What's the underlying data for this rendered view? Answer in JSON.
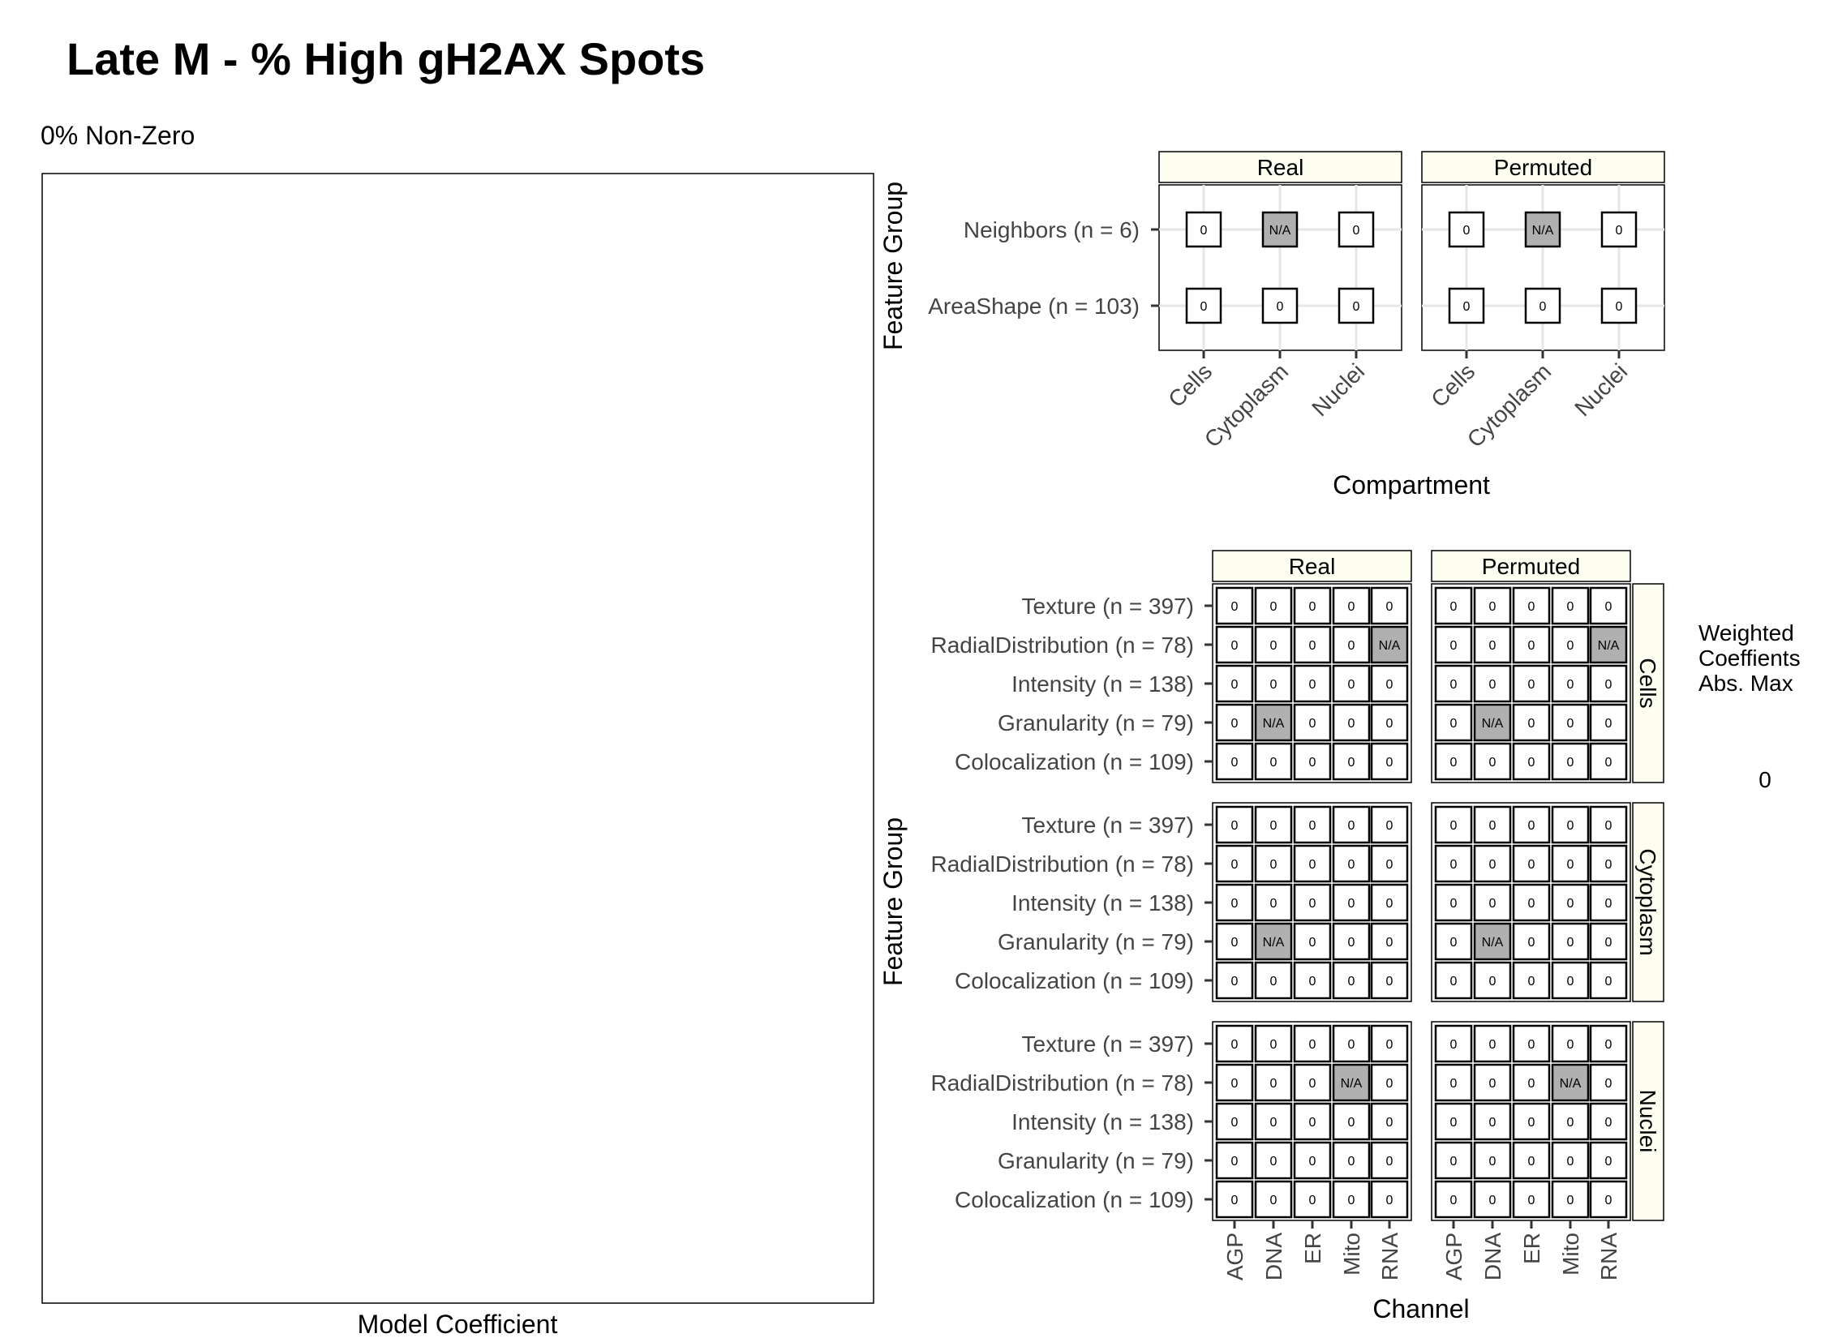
{
  "title": "Late M - % High gH2AX Spots",
  "chart_data": [
    {
      "type": "bar",
      "subtitle": "0% Non-Zero",
      "xlabel": "Model Coefficient",
      "ylabel": "",
      "categories": [],
      "values": []
    },
    {
      "type": "heatmap",
      "xlabel": "Compartment",
      "ylabel": "Feature Group",
      "facets": [
        "Real",
        "Permuted"
      ],
      "x_categories": [
        "Cells",
        "Cytoplasm",
        "Nuclei"
      ],
      "y_categories": [
        "Neighbors (n = 6)",
        "AreaShape (n = 103)"
      ],
      "cells": {
        "Real": [
          [
            "0",
            "N/A",
            "0"
          ],
          [
            "0",
            "0",
            "0"
          ]
        ],
        "Permuted": [
          [
            "0",
            "N/A",
            "0"
          ],
          [
            "0",
            "0",
            "0"
          ]
        ]
      }
    },
    {
      "type": "heatmap",
      "xlabel": "Channel",
      "ylabel": "Feature Group",
      "col_facets": [
        "Real",
        "Permuted"
      ],
      "row_facets": [
        "Cells",
        "Cytoplasm",
        "Nuclei"
      ],
      "x_categories": [
        "AGP",
        "DNA",
        "ER",
        "Mito",
        "RNA"
      ],
      "y_categories": [
        "Texture (n = 397)",
        "RadialDistribution (n = 78)",
        "Intensity (n = 138)",
        "Granularity (n = 79)",
        "Colocalization (n = 109)"
      ],
      "cells": {
        "Cells": {
          "Real": [
            [
              "0",
              "0",
              "0",
              "0",
              "0"
            ],
            [
              "0",
              "0",
              "0",
              "0",
              "N/A"
            ],
            [
              "0",
              "0",
              "0",
              "0",
              "0"
            ],
            [
              "0",
              "N/A",
              "0",
              "0",
              "0"
            ],
            [
              "0",
              "0",
              "0",
              "0",
              "0"
            ]
          ],
          "Permuted": [
            [
              "0",
              "0",
              "0",
              "0",
              "0"
            ],
            [
              "0",
              "0",
              "0",
              "0",
              "N/A"
            ],
            [
              "0",
              "0",
              "0",
              "0",
              "0"
            ],
            [
              "0",
              "N/A",
              "0",
              "0",
              "0"
            ],
            [
              "0",
              "0",
              "0",
              "0",
              "0"
            ]
          ]
        },
        "Cytoplasm": {
          "Real": [
            [
              "0",
              "0",
              "0",
              "0",
              "0"
            ],
            [
              "0",
              "0",
              "0",
              "0",
              "0"
            ],
            [
              "0",
              "0",
              "0",
              "0",
              "0"
            ],
            [
              "0",
              "N/A",
              "0",
              "0",
              "0"
            ],
            [
              "0",
              "0",
              "0",
              "0",
              "0"
            ]
          ],
          "Permuted": [
            [
              "0",
              "0",
              "0",
              "0",
              "0"
            ],
            [
              "0",
              "0",
              "0",
              "0",
              "0"
            ],
            [
              "0",
              "0",
              "0",
              "0",
              "0"
            ],
            [
              "0",
              "N/A",
              "0",
              "0",
              "0"
            ],
            [
              "0",
              "0",
              "0",
              "0",
              "0"
            ]
          ]
        },
        "Nuclei": {
          "Real": [
            [
              "0",
              "0",
              "0",
              "0",
              "0"
            ],
            [
              "0",
              "0",
              "0",
              "N/A",
              "0"
            ],
            [
              "0",
              "0",
              "0",
              "0",
              "0"
            ],
            [
              "0",
              "0",
              "0",
              "0",
              "0"
            ],
            [
              "0",
              "0",
              "0",
              "0",
              "0"
            ]
          ],
          "Permuted": [
            [
              "0",
              "0",
              "0",
              "0",
              "0"
            ],
            [
              "0",
              "0",
              "0",
              "N/A",
              "0"
            ],
            [
              "0",
              "0",
              "0",
              "0",
              "0"
            ],
            [
              "0",
              "0",
              "0",
              "0",
              "0"
            ],
            [
              "0",
              "0",
              "0",
              "0",
              "0"
            ]
          ]
        }
      },
      "legend": {
        "title_lines": [
          "Weighted",
          "Coeffients",
          "Abs. Max"
        ],
        "value": "0",
        "placement": "right"
      }
    }
  ],
  "colors": {
    "strip_fill": "#FDFDF0",
    "na_fill": "#B0B0B0",
    "grid": "#E6E6E6",
    "tile_border": "#000000"
  }
}
